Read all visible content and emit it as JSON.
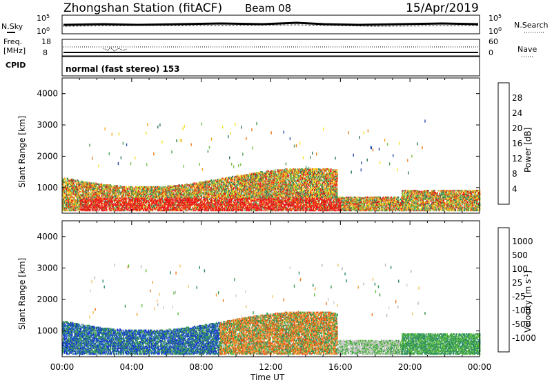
{
  "header": {
    "title": "Zhongshan Station (fitACF)",
    "beam": "Beam 08",
    "date": "15/Apr/2019"
  },
  "top_panels": {
    "nsky_label": "N.Sky",
    "nsky_left_ticks": [
      "10^5",
      "10^0"
    ],
    "nsearch_label": "N.Search",
    "nsearch_right_ticks": [
      "10^5",
      "10^0"
    ],
    "freq_label": "Freq.",
    "freq_unit": "[MHz]",
    "freq_ticks": [
      "18",
      "8"
    ],
    "nave_label": "Nave",
    "nave_ticks": [
      "60",
      "0"
    ],
    "cpid_label": "CPID",
    "cpid_text": "normal (fast stereo) 153"
  },
  "x_axis": {
    "label": "Time UT",
    "ticks": [
      "00:00",
      "04:00",
      "08:00",
      "12:00",
      "16:00",
      "20:00",
      "00:00"
    ]
  },
  "chart_data": [
    {
      "type": "heatmap",
      "name": "power",
      "ylabel": "Slant Range [km]",
      "yticks": [
        1000,
        2000,
        3000,
        4000
      ],
      "ylim": [
        180,
        4500
      ],
      "xlim": [
        0,
        24
      ],
      "colorbar_label": "Power [dB]",
      "colorbar_ticks": [
        "4",
        "8",
        "12",
        "16",
        "20",
        "24",
        "28"
      ],
      "colorbar_colors": [
        "#0a14f5",
        "#2a4fb0",
        "#2e7a55",
        "#4fa058",
        "#7cc24a",
        "#f4e11e",
        "#f5a623",
        "#f07d1e",
        "#ee2a1c",
        "#e81010"
      ],
      "grid": false
    },
    {
      "type": "heatmap",
      "name": "velocity",
      "ylabel": "Slant Range [km]",
      "yticks": [
        1000,
        2000,
        3000,
        4000
      ],
      "ylim": [
        180,
        4500
      ],
      "xlim": [
        0,
        24
      ],
      "colorbar_label": "Velocity [m s^-1]",
      "colorbar_ticks": [
        "1000",
        "500",
        "100",
        "25",
        "-25",
        "-100",
        "-500",
        "-1000"
      ],
      "colorbar_colors": [
        "#1428d4",
        "#1f5cc8",
        "#2a8a6a",
        "#3a9a4a",
        "#5cc23a",
        "#b8b8b8",
        "#cfcfcf",
        "#f2c46a",
        "#f59e3a",
        "#f07a1e",
        "#ee4a14",
        "#e81010"
      ],
      "grid": false
    }
  ]
}
